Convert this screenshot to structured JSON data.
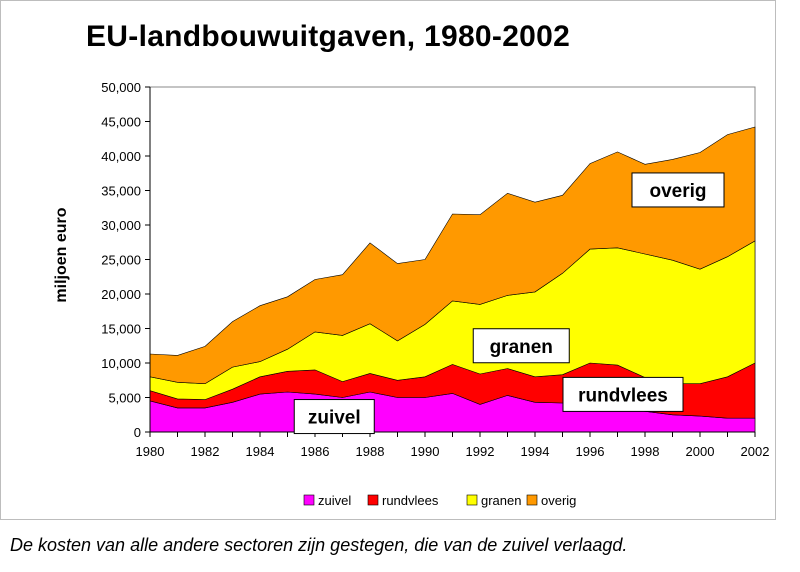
{
  "title": "EU-landbouwuitgaven, 1980-2002",
  "caption": "De kosten van alle andere sectoren zijn gestegen, die van de zuivel verlaagd.",
  "chart_data": {
    "type": "area",
    "stacked": true,
    "title": "EU-landbouwuitgaven, 1980-2002",
    "xlabel": "",
    "ylabel": "miljoen euro",
    "xlim": [
      1980,
      2002
    ],
    "ylim": [
      0,
      50000
    ],
    "x_ticks": [
      1980,
      1982,
      1984,
      1986,
      1988,
      1990,
      1992,
      1994,
      1996,
      1998,
      2000,
      2002
    ],
    "x_tick_labels": [
      "1980",
      "1982",
      "1984",
      "1986",
      "1988",
      "1990",
      "1992",
      "1994",
      "1996",
      "1998",
      "2000",
      "2002"
    ],
    "y_ticks": [
      0,
      5000,
      10000,
      15000,
      20000,
      25000,
      30000,
      35000,
      40000,
      45000,
      50000
    ],
    "y_tick_labels": [
      "0",
      "5,000",
      "10,000",
      "15,000",
      "20,000",
      "25,000",
      "30,000",
      "35,000",
      "40,000",
      "45,000",
      "50,000"
    ],
    "grid": false,
    "legend_position": "bottom",
    "x": [
      1980,
      1981,
      1982,
      1983,
      1984,
      1985,
      1986,
      1987,
      1988,
      1989,
      1990,
      1991,
      1992,
      1993,
      1994,
      1995,
      1996,
      1997,
      1998,
      1999,
      2000,
      2001,
      2002
    ],
    "series": [
      {
        "name": "zuivel",
        "color": "#ff00ff",
        "values": [
          4500,
          3500,
          3500,
          4300,
          5500,
          5800,
          5500,
          5000,
          5800,
          5000,
          5000,
          5600,
          4000,
          5300,
          4300,
          4200,
          3800,
          3500,
          3000,
          2500,
          2300,
          2000,
          2000
        ]
      },
      {
        "name": "rundvlees",
        "color": "#ff0000",
        "values": [
          1500,
          1300,
          1200,
          1900,
          2500,
          3000,
          3500,
          2300,
          2700,
          2500,
          3000,
          4200,
          4400,
          3900,
          3700,
          4100,
          6200,
          6200,
          4900,
          4500,
          4700,
          6000,
          8000
        ]
      },
      {
        "name": "granen",
        "color": "#ffff00",
        "values": [
          2000,
          2400,
          2300,
          3200,
          2200,
          3200,
          5500,
          6700,
          7200,
          5700,
          7600,
          9200,
          10100,
          10600,
          12300,
          14700,
          16500,
          17000,
          17900,
          17900,
          16600,
          17400,
          17700
        ]
      },
      {
        "name": "overig",
        "color": "#ff9900",
        "values": [
          3300,
          3900,
          5400,
          6600,
          8100,
          7600,
          7600,
          8800,
          11700,
          11200,
          9400,
          12600,
          13000,
          14800,
          13000,
          11300,
          12400,
          13900,
          13000,
          14600,
          16900,
          17700,
          16500
        ]
      }
    ],
    "annotations": [
      {
        "text": "overig",
        "series": "overig"
      },
      {
        "text": "granen",
        "series": "granen"
      },
      {
        "text": "rundvlees",
        "series": "rundvlees"
      },
      {
        "text": "zuivel",
        "series": "zuivel"
      }
    ]
  }
}
